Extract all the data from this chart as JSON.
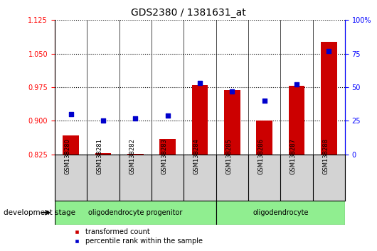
{
  "title": "GDS2380 / 1381631_at",
  "samples": [
    "GSM138280",
    "GSM138281",
    "GSM138282",
    "GSM138283",
    "GSM138284",
    "GSM138285",
    "GSM138286",
    "GSM138287",
    "GSM138288"
  ],
  "transformed_count": [
    0.868,
    0.828,
    0.826,
    0.86,
    0.979,
    0.968,
    0.901,
    0.978,
    1.076
  ],
  "percentile_rank": [
    30,
    25,
    27,
    29,
    53,
    47,
    40,
    52,
    77
  ],
  "ylim_left": [
    0.825,
    1.125
  ],
  "ylim_right": [
    0,
    100
  ],
  "yticks_left": [
    0.825,
    0.9,
    0.975,
    1.05,
    1.125
  ],
  "yticks_right": [
    0,
    25,
    50,
    75,
    100
  ],
  "group_labels": [
    "oligodendrocyte progenitor",
    "oligodendrocyte"
  ],
  "group_starts": [
    0,
    5
  ],
  "group_ends": [
    5,
    9
  ],
  "bar_color": "#CC0000",
  "dot_color": "#0000CC",
  "background_color": "#ffffff",
  "tick_area_color": "#d3d3d3",
  "group_color": "#90EE90",
  "legend_items": [
    "transformed count",
    "percentile rank within the sample"
  ]
}
